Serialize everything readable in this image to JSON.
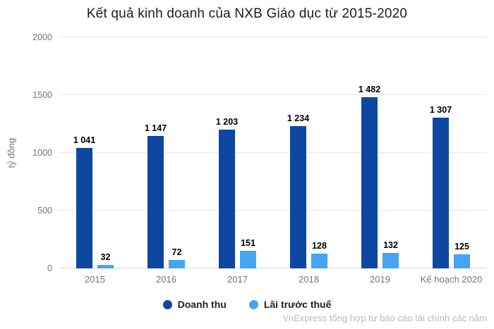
{
  "chart": {
    "title": "Kết quả kinh doanh của NXB Giáo dục từ 2015-2020",
    "y_axis_title": "tỷ đồng",
    "source": "VnExpress tổng hợp từ báo cáo tài chính các năm"
  },
  "chart_data": {
    "type": "bar",
    "title": "Kết quả kinh doanh của NXB Giáo dục từ 2015-2020",
    "xlabel": "",
    "ylabel": "tỷ đồng",
    "ylim": [
      0,
      2000
    ],
    "y_ticks": [
      0,
      500,
      1000,
      1500,
      2000
    ],
    "grid": true,
    "legend_position": "bottom",
    "source": "VnExpress tổng hợp từ báo cáo tài chính các năm",
    "categories": [
      "2015",
      "2016",
      "2017",
      "2018",
      "2019",
      "Kế hoạch 2020"
    ],
    "series": [
      {
        "name": "Doanh thu",
        "color": "#0d47a1",
        "values": [
          1041,
          1147,
          1203,
          1234,
          1482,
          1307
        ],
        "labels": [
          "1 041",
          "1 147",
          "1 203",
          "1 234",
          "1 482",
          "1 307"
        ]
      },
      {
        "name": "Lãi trước thuế",
        "color": "#45a5f0",
        "values": [
          32,
          72,
          151,
          128,
          132,
          125
        ],
        "labels": [
          "32",
          "72",
          "151",
          "128",
          "132",
          "125"
        ]
      }
    ]
  }
}
